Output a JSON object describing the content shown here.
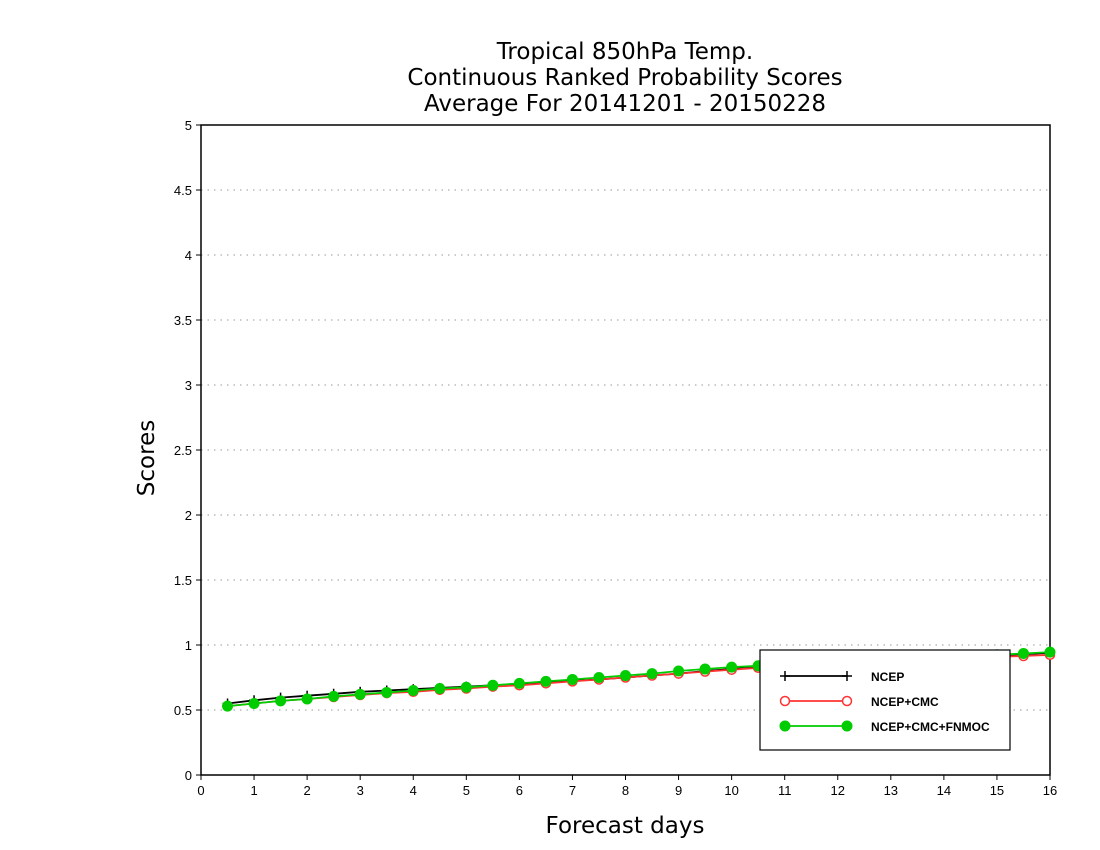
{
  "chart_data": {
    "type": "line",
    "title_lines": [
      "Tropical 850hPa Temp.",
      "Continuous Ranked Probability Scores",
      "Average For 20141201 - 20150228"
    ],
    "xlabel": "Forecast days",
    "ylabel": "Scores",
    "xlim": [
      0,
      16
    ],
    "ylim": [
      0,
      5
    ],
    "x_ticks": [
      "0",
      "1",
      "2",
      "3",
      "4",
      "5",
      "6",
      "7",
      "8",
      "9",
      "10",
      "11",
      "12",
      "13",
      "14",
      "15",
      "16"
    ],
    "y_ticks": [
      "0",
      "0.5",
      "1",
      "1.5",
      "2",
      "2.5",
      "3",
      "3.5",
      "4",
      "4.5",
      "5"
    ],
    "grid": "horizontal dotted",
    "legend_position": "bottom-right",
    "x": [
      0.5,
      1,
      1.5,
      2,
      2.5,
      3,
      3.5,
      4,
      4.5,
      5,
      5.5,
      6,
      6.5,
      7,
      7.5,
      8,
      8.5,
      9,
      9.5,
      10,
      10.5,
      11,
      11.5,
      12,
      12.5,
      13,
      13.5,
      14,
      14.5,
      15,
      15.5,
      16
    ],
    "series": [
      {
        "name": "NCEP",
        "color": "#000000",
        "marker": "plus",
        "values": [
          0.55,
          0.575,
          0.595,
          0.61,
          0.625,
          0.64,
          0.65,
          0.66,
          0.67,
          0.68,
          0.69,
          0.7,
          0.71,
          0.725,
          0.735,
          0.75,
          0.765,
          0.78,
          0.8,
          0.815,
          0.83,
          0.84,
          0.85,
          0.86,
          0.87,
          0.88,
          0.89,
          0.9,
          0.91,
          0.92,
          0.93,
          0.94
        ]
      },
      {
        "name": "NCEP+CMC",
        "color": "#ff3333",
        "marker": "open-circle",
        "values": [
          0.53,
          0.55,
          0.57,
          0.585,
          0.6,
          0.615,
          0.63,
          0.64,
          0.655,
          0.665,
          0.68,
          0.69,
          0.705,
          0.72,
          0.735,
          0.75,
          0.765,
          0.78,
          0.795,
          0.81,
          0.825,
          0.835,
          0.845,
          0.855,
          0.865,
          0.875,
          0.885,
          0.895,
          0.905,
          0.91,
          0.915,
          0.925
        ]
      },
      {
        "name": "NCEP+CMC+FNMOC",
        "color": "#00cc00",
        "marker": "filled-circle",
        "values": [
          0.53,
          0.55,
          0.57,
          0.585,
          0.605,
          0.62,
          0.635,
          0.65,
          0.665,
          0.675,
          0.69,
          0.705,
          0.72,
          0.735,
          0.75,
          0.765,
          0.78,
          0.8,
          0.815,
          0.83,
          0.84,
          0.85,
          0.86,
          0.87,
          0.88,
          0.89,
          0.9,
          0.91,
          0.915,
          0.925,
          0.935,
          0.945
        ]
      }
    ]
  }
}
